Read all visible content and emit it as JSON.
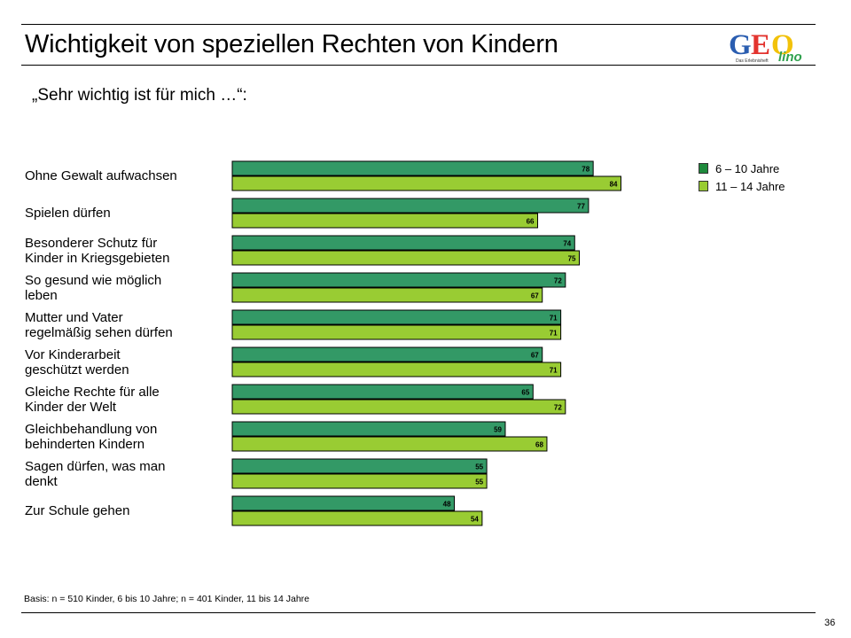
{
  "page": {
    "title": "Wichtigkeit von speziellen Rechten von Kindern",
    "subtitle": "„Sehr wichtig ist für mich …“:",
    "footnote": "Basis: n  = 510 Kinder, 6 bis 10 Jahre; n = 401 Kinder, 11 bis 14 Jahre",
    "page_number": "36"
  },
  "logo": {
    "text": "GEO",
    "suffix": "lino",
    "tagline": "Das Erlebnisheft",
    "colors": [
      "#2a5db0",
      "#e3342f",
      "#f2c20a",
      "#30a14e"
    ]
  },
  "chart_data": {
    "type": "bar",
    "orientation": "horizontal",
    "categories": [
      [
        "Ohne Gewalt aufwachsen"
      ],
      [
        "Spielen dürfen"
      ],
      [
        "Besonderer Schutz für",
        "Kinder in Kriegsgebieten"
      ],
      [
        "So gesund wie möglich",
        "leben"
      ],
      [
        "Mutter und Vater",
        "regelmäßig sehen dürfen"
      ],
      [
        "Vor Kinderarbeit",
        "geschützt werden"
      ],
      [
        "Gleiche Rechte für alle",
        "Kinder der Welt"
      ],
      [
        "Gleichbehandlung von",
        "behinderten Kindern"
      ],
      [
        "Sagen dürfen, was man",
        "denkt"
      ],
      [
        "Zur Schule gehen"
      ]
    ],
    "series": [
      {
        "name": "6 – 10 Jahre",
        "color": "#339966",
        "values": [
          78,
          77,
          74,
          72,
          71,
          67,
          65,
          59,
          55,
          48
        ]
      },
      {
        "name": "11 – 14 Jahre",
        "color": "#99cc33",
        "values": [
          84,
          66,
          75,
          67,
          71,
          71,
          72,
          68,
          55,
          54
        ]
      }
    ],
    "xlim": [
      0,
      100
    ],
    "grid": false,
    "legend": "top-right",
    "data_labels": true
  }
}
